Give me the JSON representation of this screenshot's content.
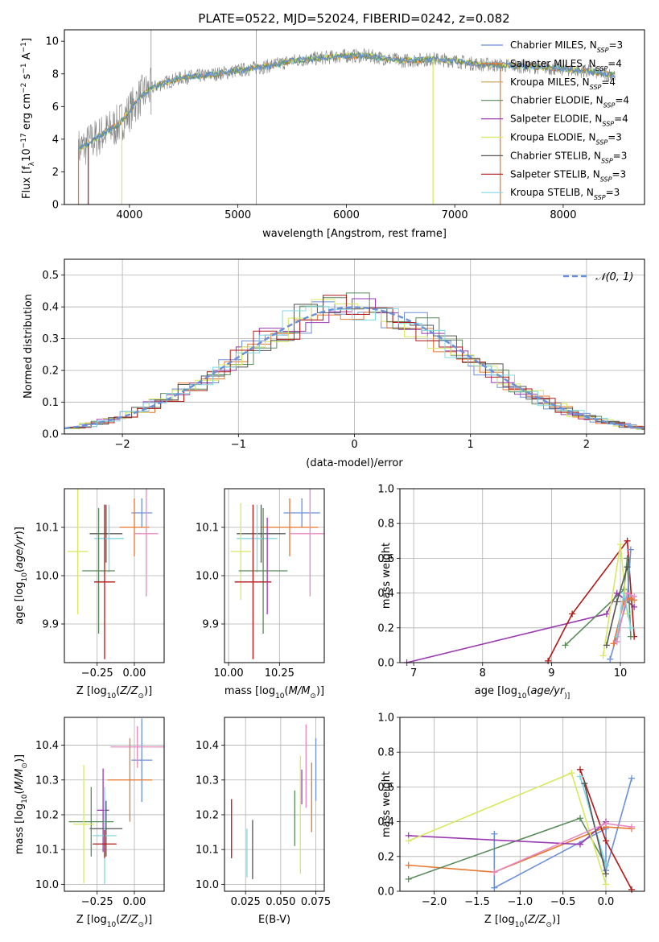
{
  "title": "PLATE=0522, MJD=52024, FIBERID=0242, z=0.082",
  "colors": {
    "chabrier_miles": "#6b8fd8",
    "salpeter_miles": "#e8772e",
    "kroupa_miles": "#c8a050",
    "chabrier_elodie": "#5a8a5a",
    "salpeter_elodie": "#9a3ab0",
    "kroupa_elodie": "#d8e860",
    "chabrier_stelib": "#555555",
    "salpeter_stelib": "#b01818",
    "kroupa_stelib": "#7fd8e0",
    "pink": "#e888c0",
    "data": "#808080",
    "gauss": "#6b8fd8"
  },
  "chart_data": [
    {
      "type": "line",
      "panel": "spectrum",
      "title": "PLATE=0522, MJD=52024, FIBERID=0242, z=0.082",
      "xlabel": "wavelength [Angstrom, rest frame]",
      "ylabel_parts": [
        "Flux [f",
        "λ",
        "10",
        "−17",
        " erg cm",
        "−2",
        " s",
        "−1",
        " A",
        "−1",
        "]"
      ],
      "xlim": [
        3400,
        8750
      ],
      "ylim": [
        0,
        10.7
      ],
      "xticks": [
        4000,
        5000,
        6000,
        7000,
        8000
      ],
      "yticks": [
        0,
        2,
        4,
        6,
        8,
        10
      ],
      "legend_position": "top-right",
      "continuum": {
        "x": [
          3530,
          3600,
          3700,
          3800,
          3900,
          4000,
          4100,
          4200,
          4300,
          4500,
          4700,
          4900,
          5100,
          5300,
          5500,
          5800,
          6000,
          6200,
          6500,
          6800,
          7000,
          7200,
          7500,
          7800,
          8000,
          8300,
          8480
        ],
        "y": [
          3.4,
          3.6,
          4.1,
          4.5,
          4.9,
          5.7,
          6.6,
          7.1,
          7.4,
          7.8,
          7.9,
          8.1,
          8.3,
          8.5,
          8.8,
          9.0,
          9.1,
          9.1,
          8.8,
          8.9,
          8.8,
          8.6,
          8.5,
          8.4,
          8.3,
          8.1,
          7.9
        ]
      },
      "legend": [
        {
          "label": "Chabrier MILES, N",
          "sub": "SSP",
          "suffix": "=3",
          "color": "#6b8fd8"
        },
        {
          "label": "Salpeter MILES, N",
          "sub": "SSP",
          "suffix": "=4",
          "color": "#e8772e"
        },
        {
          "label": "Kroupa MILES, N",
          "sub": "SSP",
          "suffix": "=4",
          "color": "#c8a050"
        },
        {
          "label": "Chabrier ELODIE, N",
          "sub": "SSP",
          "suffix": "=4",
          "color": "#5a8a5a"
        },
        {
          "label": "Salpeter ELODIE, N",
          "sub": "SSP",
          "suffix": "=4",
          "color": "#9a3ab0"
        },
        {
          "label": "Kroupa ELODIE, N",
          "sub": "SSP",
          "suffix": "=3",
          "color": "#d8e860"
        },
        {
          "label": "Chabrier STELIB, N",
          "sub": "SSP",
          "suffix": "=3",
          "color": "#555555"
        },
        {
          "label": "Salpeter STELIB, N",
          "sub": "SSP",
          "suffix": "=3",
          "color": "#b01818"
        },
        {
          "label": "Kroupa STELIB, N",
          "sub": "SSP",
          "suffix": "=3",
          "color": "#7fd8e0"
        }
      ]
    },
    {
      "type": "bar",
      "panel": "residuals",
      "xlabel": "(data-model)/error",
      "ylabel": "Normed distribution",
      "xlim": [
        -2.5,
        2.5
      ],
      "ylim": [
        0,
        0.55
      ],
      "xticks": [
        -2,
        -1,
        0,
        1,
        2
      ],
      "yticks": [
        0.0,
        0.1,
        0.2,
        0.3,
        0.4,
        0.5
      ],
      "legend_label": "𝒩(0, 1)",
      "legend_position": "top-right",
      "bin_width": 0.2
    },
    {
      "type": "scatter",
      "panel": "age_vs_Z",
      "xlabel_parts": [
        "Z [log",
        "10",
        "(",
        "Z/Z",
        "⊙",
        ")]"
      ],
      "ylabel_parts": [
        "age  [log",
        "10",
        "(",
        "age/yr",
        ")]"
      ],
      "xlim": [
        -0.47,
        0.2
      ],
      "ylim": [
        9.82,
        10.18
      ],
      "xticks": [
        -0.25,
        0.0
      ],
      "xticklabels": [
        "−0.25",
        "0.00"
      ],
      "yticks": [
        9.9,
        10.0,
        10.1
      ],
      "points": [
        {
          "x": 0.05,
          "y": 10.13,
          "xerr": 0.07,
          "yerr": 0.03,
          "color": "#6b8fd8"
        },
        {
          "x": 0.0,
          "y": 10.1,
          "xerr": 0.1,
          "yerr": 0.06,
          "color": "#e8772e"
        },
        {
          "x": 0.08,
          "y": 10.087,
          "xerr": 0.08,
          "yerr": 0.13,
          "color": "#e888c0"
        },
        {
          "x": -0.19,
          "y": 10.087,
          "xerr": 0.11,
          "yerr": 0.06,
          "color": "#555555"
        },
        {
          "x": -0.17,
          "y": 10.077,
          "xerr": 0.1,
          "yerr": 0.07,
          "color": "#7fd8e0"
        },
        {
          "x": -0.38,
          "y": 10.05,
          "xerr": 0.07,
          "yerr": 0.13,
          "color": "#d8e860"
        },
        {
          "x": -0.24,
          "y": 10.01,
          "xerr": 0.11,
          "yerr": 0.13,
          "color": "#5a8a5a"
        },
        {
          "x": -0.2,
          "y": 9.987,
          "xerr": 0.07,
          "yerr": 0.16,
          "color": "#b01818"
        }
      ]
    },
    {
      "type": "scatter",
      "panel": "age_vs_mass",
      "xlabel_parts": [
        "mass [log",
        "10",
        "(",
        "M/M",
        "⊙",
        ")]"
      ],
      "xlim": [
        9.98,
        10.47
      ],
      "ylim": [
        9.82,
        10.18
      ],
      "xticks": [
        10.0,
        10.25
      ],
      "xticklabels": [
        "10.00",
        "10.25"
      ],
      "yticks": [
        9.9,
        10.0,
        10.1
      ],
      "points": [
        {
          "x": 10.36,
          "y": 10.13,
          "xerr": 0.09,
          "yerr": 0.03,
          "color": "#6b8fd8"
        },
        {
          "x": 10.3,
          "y": 10.1,
          "xerr": 0.14,
          "yerr": 0.06,
          "color": "#e8772e"
        },
        {
          "x": 10.4,
          "y": 10.087,
          "xerr": 0.1,
          "yerr": 0.13,
          "color": "#e888c0"
        },
        {
          "x": 10.16,
          "y": 10.087,
          "xerr": 0.12,
          "yerr": 0.06,
          "color": "#555555"
        },
        {
          "x": 10.14,
          "y": 10.077,
          "xerr": 0.1,
          "yerr": 0.07,
          "color": "#7fd8e0"
        },
        {
          "x": 10.06,
          "y": 10.05,
          "xerr": 0.05,
          "yerr": 0.1,
          "color": "#d8e860"
        },
        {
          "x": 10.17,
          "y": 10.01,
          "xerr": 0.12,
          "yerr": 0.13,
          "color": "#5a8a5a"
        },
        {
          "x": 10.12,
          "y": 9.987,
          "xerr": 0.09,
          "yerr": 0.16,
          "color": "#b01818"
        },
        {
          "x": 10.19,
          "y": 10.02,
          "xerr": 0.0,
          "yerr": 0.1,
          "color": "#9a3ab0"
        }
      ]
    },
    {
      "type": "line",
      "panel": "weight_vs_age",
      "xlabel_parts": [
        "age  [log",
        "10",
        "(",
        "age/yr",
        ")]"
      ],
      "ylabel": "mass weight",
      "xlim": [
        6.8,
        10.35
      ],
      "ylim": [
        0,
        1.0
      ],
      "xticks": [
        7,
        8,
        9,
        10
      ],
      "yticks": [
        0.0,
        0.2,
        0.4,
        0.6,
        0.8,
        1.0
      ],
      "series": [
        {
          "color": "#9a3ab0",
          "x": [
            6.9,
            9.8,
            9.95,
            10.2
          ],
          "y": [
            0.0,
            0.28,
            0.4,
            0.32
          ]
        },
        {
          "color": "#b01818",
          "x": [
            8.95,
            9.3,
            10.1,
            10.2
          ],
          "y": [
            0.01,
            0.28,
            0.7,
            0.15
          ]
        },
        {
          "color": "#5a8a5a",
          "x": [
            9.2,
            10.05,
            10.1,
            10.15
          ],
          "y": [
            0.1,
            0.42,
            0.6,
            0.15
          ]
        },
        {
          "color": "#6b8fd8",
          "x": [
            9.85,
            10.1,
            10.15
          ],
          "y": [
            0.02,
            0.36,
            0.65
          ]
        },
        {
          "color": "#e8772e",
          "x": [
            9.9,
            10.05,
            10.15,
            10.2
          ],
          "y": [
            0.11,
            0.35,
            0.37,
            0.36
          ]
        },
        {
          "color": "#d8e860",
          "x": [
            9.75,
            10.0,
            10.1
          ],
          "y": [
            0.04,
            0.68,
            0.28
          ]
        },
        {
          "color": "#7fd8e0",
          "x": [
            9.95,
            10.05,
            10.15
          ],
          "y": [
            0.15,
            0.4,
            0.2
          ]
        },
        {
          "color": "#555555",
          "x": [
            9.8,
            9.95,
            10.1
          ],
          "y": [
            0.1,
            0.35,
            0.55
          ]
        },
        {
          "color": "#e888c0",
          "x": [
            9.95,
            10.1,
            10.2
          ],
          "y": [
            0.12,
            0.4,
            0.38
          ]
        }
      ]
    },
    {
      "type": "scatter",
      "panel": "mass_vs_Z",
      "xlabel_parts": [
        "Z [log",
        "10",
        "(",
        "Z/Z",
        "⊙",
        ")]"
      ],
      "ylabel_parts": [
        "mass [log",
        "10",
        "(",
        "M/M",
        "⊙",
        ")]"
      ],
      "xlim": [
        -0.47,
        0.2
      ],
      "ylim": [
        9.98,
        10.48
      ],
      "xticks": [
        -0.25,
        0.0
      ],
      "xticklabels": [
        "−0.25",
        "0.00"
      ],
      "yticks": [
        10.0,
        10.1,
        10.2,
        10.3,
        10.4
      ],
      "points": [
        {
          "x": 0.05,
          "y": 10.357,
          "xerr": 0.07,
          "yerr": 0.12,
          "color": "#6b8fd8"
        },
        {
          "x": -0.03,
          "y": 10.3,
          "xerr": 0.15,
          "yerr": 0.12,
          "color": "#e8772e"
        },
        {
          "x": 0.02,
          "y": 10.395,
          "xerr": 0.18,
          "yerr": 0.06,
          "color": "#e888c0"
        },
        {
          "x": -0.21,
          "y": 10.213,
          "xerr": 0.04,
          "yerr": 0.12,
          "color": "#9a3ab0"
        },
        {
          "x": -0.19,
          "y": 10.16,
          "xerr": 0.11,
          "yerr": 0.08,
          "color": "#555555"
        },
        {
          "x": -0.29,
          "y": 10.18,
          "xerr": 0.15,
          "yerr": 0.1,
          "color": "#5a8a5a"
        },
        {
          "x": -0.34,
          "y": 10.173,
          "xerr": 0.07,
          "yerr": 0.17,
          "color": "#d8e860"
        },
        {
          "x": -0.2,
          "y": 10.14,
          "xerr": 0.08,
          "yerr": 0.14,
          "color": "#7fd8e0"
        },
        {
          "x": -0.2,
          "y": 10.116,
          "xerr": 0.08,
          "yerr": 0.04,
          "color": "#b01818"
        }
      ]
    },
    {
      "type": "scatter",
      "panel": "mass_vs_ebv",
      "xlabel": "E(B-V)",
      "xlim": [
        0.01,
        0.081
      ],
      "ylim": [
        9.98,
        10.48
      ],
      "xticks": [
        0.025,
        0.05,
        0.075
      ],
      "xticklabels": [
        "0.025",
        "0.050",
        "0.075"
      ],
      "yticks": [
        10.0,
        10.1,
        10.2,
        10.3,
        10.4
      ],
      "points": [
        {
          "x": 0.015,
          "y": 10.16,
          "yerr": 0.085,
          "color": "#b01818"
        },
        {
          "x": 0.026,
          "y": 10.09,
          "yerr": 0.07,
          "color": "#7fd8e0"
        },
        {
          "x": 0.03,
          "y": 10.1,
          "yerr": 0.085,
          "color": "#555555"
        },
        {
          "x": 0.06,
          "y": 10.19,
          "yerr": 0.08,
          "color": "#5a8a5a"
        },
        {
          "x": 0.065,
          "y": 10.28,
          "yerr": 0.05,
          "color": "#9a3ab0"
        },
        {
          "x": 0.068,
          "y": 10.34,
          "yerr": 0.12,
          "color": "#e888c0"
        },
        {
          "x": 0.072,
          "y": 10.25,
          "yerr": 0.1,
          "color": "#e8772e"
        },
        {
          "x": 0.075,
          "y": 10.33,
          "yerr": 0.09,
          "color": "#6b8fd8"
        },
        {
          "x": 0.064,
          "y": 10.2,
          "yerr": 0.17,
          "color": "#d8e860"
        }
      ]
    },
    {
      "type": "line",
      "panel": "weight_vs_Z",
      "xlabel_parts": [
        "Z [log",
        "10",
        "(",
        "Z/Z",
        "⊙",
        ")]"
      ],
      "ylabel": "mass weight",
      "xlim": [
        -2.4,
        0.45
      ],
      "ylim": [
        0,
        1.0
      ],
      "xticks": [
        -2.0,
        -1.5,
        -1.0,
        -0.5,
        0.0
      ],
      "xticklabels": [
        "−2.0",
        "−1.5",
        "−1.0",
        "−0.5",
        "0.0"
      ],
      "yticks": [
        0.0,
        0.2,
        0.4,
        0.6,
        0.8,
        1.0
      ],
      "series": [
        {
          "color": "#6b8fd8",
          "x": [
            -1.3,
            -1.3,
            0.0,
            0.0,
            0.3
          ],
          "y": [
            0.33,
            0.02,
            0.36,
            0.12,
            0.65
          ]
        },
        {
          "color": "#e8772e",
          "x": [
            -2.3,
            -1.3,
            0.0,
            0.3
          ],
          "y": [
            0.15,
            0.11,
            0.37,
            0.36
          ]
        },
        {
          "color": "#5a8a5a",
          "x": [
            -2.3,
            -0.3,
            0.0
          ],
          "y": [
            0.07,
            0.42,
            0.15
          ]
        },
        {
          "color": "#9a3ab0",
          "x": [
            -2.3,
            -0.3,
            0.0
          ],
          "y": [
            0.32,
            0.27,
            0.4
          ]
        },
        {
          "color": "#d8e860",
          "x": [
            -2.3,
            -0.4,
            0.0
          ],
          "y": [
            0.29,
            0.68,
            0.04
          ]
        },
        {
          "color": "#b01818",
          "x": [
            -0.3,
            0.0,
            0.3
          ],
          "y": [
            0.7,
            0.29,
            0.01
          ]
        },
        {
          "color": "#7fd8e0",
          "x": [
            -0.3,
            0.0
          ],
          "y": [
            0.66,
            0.15
          ]
        },
        {
          "color": "#555555",
          "x": [
            -0.25,
            0.0
          ],
          "y": [
            0.62,
            0.1
          ]
        },
        {
          "color": "#e888c0",
          "x": [
            -1.3,
            0.0,
            0.3
          ],
          "y": [
            0.11,
            0.39,
            0.37
          ]
        }
      ]
    }
  ]
}
